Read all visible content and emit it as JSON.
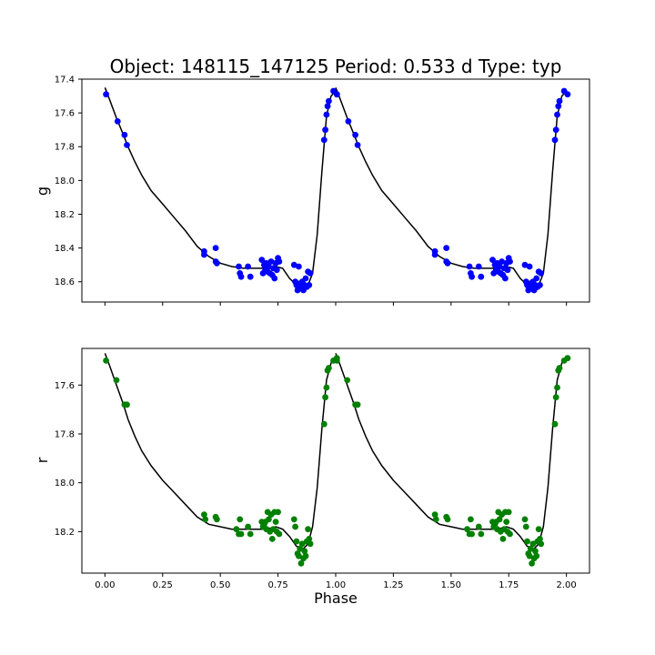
{
  "figure": {
    "title": "Object: 148115_147125    Period: 0.533 d    Type: typ"
  },
  "chart_data": [
    {
      "type": "scatter",
      "panel": "top",
      "ylabel": "g",
      "xlabel": "",
      "xlim": [
        -0.1,
        2.1
      ],
      "ylim": [
        18.72,
        17.4
      ],
      "y_inverted": true,
      "xticks": [
        0.0,
        0.25,
        0.5,
        0.75,
        1.0,
        1.25,
        1.5,
        1.75,
        2.0
      ],
      "xtick_labels_visible": false,
      "yticks": [
        17.4,
        17.6,
        17.8,
        18.0,
        18.2,
        18.4,
        18.6
      ],
      "ytick_labels": [
        "17.4",
        "17.6",
        "17.8",
        "18.0",
        "18.2",
        "18.4",
        "18.6"
      ],
      "grid": false,
      "series": [
        {
          "kind": "points",
          "color": "#0000ff",
          "x": [
            0.005,
            0.055,
            0.085,
            0.095,
            0.43,
            0.43,
            0.48,
            0.48,
            0.485,
            0.58,
            0.585,
            0.59,
            0.62,
            0.63,
            0.68,
            0.685,
            0.69,
            0.695,
            0.7,
            0.705,
            0.71,
            0.715,
            0.72,
            0.725,
            0.73,
            0.735,
            0.74,
            0.745,
            0.75,
            0.755,
            0.82,
            0.825,
            0.83,
            0.835,
            0.84,
            0.845,
            0.85,
            0.855,
            0.86,
            0.865,
            0.87,
            0.875,
            0.88,
            0.885,
            0.89,
            0.95,
            0.955,
            0.96,
            0.965,
            0.97,
            0.99,
            1.005
          ],
          "y": [
            17.49,
            17.65,
            17.73,
            17.79,
            18.42,
            18.44,
            18.4,
            18.48,
            18.49,
            18.51,
            18.55,
            18.57,
            18.51,
            18.57,
            18.47,
            18.55,
            18.5,
            18.53,
            18.49,
            18.54,
            18.51,
            18.55,
            18.48,
            18.56,
            18.52,
            18.58,
            18.49,
            18.53,
            18.46,
            18.48,
            18.5,
            18.6,
            18.62,
            18.65,
            18.51,
            18.61,
            18.63,
            18.6,
            18.65,
            18.62,
            18.58,
            18.63,
            18.54,
            18.62,
            18.55,
            17.76,
            17.7,
            17.61,
            17.56,
            17.53,
            17.47,
            17.49
          ]
        },
        {
          "kind": "line",
          "color": "#000000",
          "x": [
            0.0,
            0.02,
            0.05,
            0.08,
            0.1,
            0.13,
            0.16,
            0.2,
            0.25,
            0.3,
            0.35,
            0.4,
            0.45,
            0.5,
            0.55,
            0.6,
            0.65,
            0.7,
            0.74,
            0.77,
            0.8,
            0.83,
            0.86,
            0.88,
            0.9,
            0.92,
            0.94,
            0.96,
            0.98,
            1.0
          ],
          "y": [
            17.45,
            17.52,
            17.63,
            17.73,
            17.8,
            17.89,
            17.97,
            18.06,
            18.14,
            18.22,
            18.3,
            18.39,
            18.45,
            18.49,
            18.51,
            18.52,
            18.52,
            18.52,
            18.51,
            18.52,
            18.58,
            18.62,
            18.63,
            18.62,
            18.55,
            18.32,
            17.95,
            17.62,
            17.5,
            17.47
          ]
        }
      ]
    },
    {
      "type": "scatter",
      "panel": "bottom",
      "ylabel": "r",
      "xlabel": "Phase",
      "xlim": [
        -0.1,
        2.1
      ],
      "ylim": [
        18.37,
        17.45
      ],
      "y_inverted": true,
      "xticks": [
        0.0,
        0.25,
        0.5,
        0.75,
        1.0,
        1.25,
        1.5,
        1.75,
        2.0
      ],
      "xtick_labels": [
        "0.00",
        "0.25",
        "0.50",
        "0.75",
        "1.00",
        "1.25",
        "1.50",
        "1.75",
        "2.00"
      ],
      "yticks": [
        17.6,
        17.8,
        18.0,
        18.2
      ],
      "ytick_labels": [
        "17.6",
        "17.8",
        "18.0",
        "18.2"
      ],
      "grid": false,
      "series": [
        {
          "kind": "points",
          "color": "#008000",
          "x": [
            0.005,
            0.05,
            0.085,
            0.095,
            0.43,
            0.435,
            0.48,
            0.485,
            0.57,
            0.58,
            0.585,
            0.59,
            0.62,
            0.63,
            0.68,
            0.685,
            0.69,
            0.695,
            0.7,
            0.705,
            0.71,
            0.715,
            0.72,
            0.725,
            0.73,
            0.735,
            0.74,
            0.745,
            0.75,
            0.755,
            0.82,
            0.825,
            0.83,
            0.835,
            0.84,
            0.845,
            0.85,
            0.855,
            0.86,
            0.865,
            0.87,
            0.875,
            0.88,
            0.885,
            0.89,
            0.95,
            0.955,
            0.96,
            0.965,
            0.97,
            0.99,
            1.005
          ],
          "y": [
            17.5,
            17.58,
            17.68,
            17.68,
            18.13,
            18.15,
            18.14,
            18.15,
            18.19,
            18.21,
            18.15,
            18.21,
            18.18,
            18.21,
            18.16,
            18.18,
            18.17,
            18.16,
            18.19,
            18.12,
            18.15,
            18.2,
            18.13,
            18.23,
            18.19,
            18.12,
            18.16,
            18.2,
            18.12,
            18.21,
            18.15,
            18.18,
            18.24,
            18.29,
            18.3,
            18.27,
            18.33,
            18.25,
            18.31,
            18.28,
            18.3,
            18.24,
            18.19,
            18.23,
            18.25,
            17.76,
            17.65,
            17.61,
            17.54,
            17.53,
            17.5,
            17.49
          ]
        },
        {
          "kind": "line",
          "color": "#000000",
          "x": [
            0.0,
            0.02,
            0.05,
            0.08,
            0.1,
            0.13,
            0.16,
            0.2,
            0.25,
            0.3,
            0.35,
            0.4,
            0.45,
            0.5,
            0.55,
            0.6,
            0.65,
            0.7,
            0.74,
            0.77,
            0.8,
            0.83,
            0.86,
            0.88,
            0.9,
            0.92,
            0.94,
            0.96,
            0.98,
            1.0
          ],
          "y": [
            17.47,
            17.52,
            17.6,
            17.68,
            17.74,
            17.81,
            17.87,
            17.93,
            17.99,
            18.04,
            18.09,
            18.14,
            18.17,
            18.18,
            18.19,
            18.19,
            18.19,
            18.19,
            18.18,
            18.19,
            18.22,
            18.26,
            18.27,
            18.25,
            18.18,
            18.02,
            17.78,
            17.58,
            17.51,
            17.48
          ]
        }
      ]
    }
  ]
}
